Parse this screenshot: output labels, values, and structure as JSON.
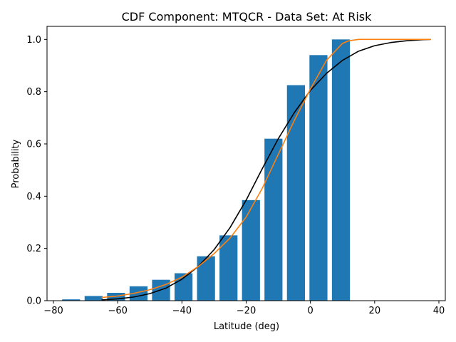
{
  "chart_data": {
    "type": "bar",
    "title": "CDF Component: MTQCR - Data Set: At Risk",
    "xlabel": "Latitude (deg)",
    "ylabel": "Probability",
    "xlim": [
      -82,
      42
    ],
    "ylim": [
      0,
      1.05
    ],
    "x_ticks": [
      -80,
      -60,
      -40,
      -20,
      0,
      20,
      40
    ],
    "y_ticks": [
      0.0,
      0.2,
      0.4,
      0.6,
      0.8,
      1.0
    ],
    "x_tick_labels": [
      "−80",
      "−60",
      "−40",
      "−20",
      "0",
      "20",
      "40"
    ],
    "y_tick_labels": [
      "0.0",
      "0.2",
      "0.4",
      "0.6",
      "0.8",
      "1.0"
    ],
    "grid": false,
    "bar_color": "#1f77b4",
    "bar_width": 5.6,
    "bars": {
      "x": [
        -74.5,
        -67.5,
        -60.5,
        -53.5,
        -46.5,
        -39.5,
        -32.5,
        -25.5,
        -18.5,
        -11.5,
        -4.5,
        2.5,
        9.5
      ],
      "values": [
        0.005,
        0.018,
        0.03,
        0.055,
        0.08,
        0.105,
        0.17,
        0.25,
        0.385,
        0.62,
        0.825,
        0.94,
        1.0
      ]
    },
    "series": [
      {
        "type": "line",
        "color": "#000000",
        "x": [
          -65,
          -60,
          -55,
          -50,
          -45,
          -40,
          -35,
          -30,
          -25,
          -20,
          -15,
          -10,
          -5,
          0,
          5,
          10,
          15,
          20,
          25,
          30,
          35,
          37.5
        ],
        "values": [
          0.003,
          0.007,
          0.014,
          0.027,
          0.048,
          0.082,
          0.13,
          0.195,
          0.28,
          0.385,
          0.505,
          0.62,
          0.72,
          0.805,
          0.87,
          0.92,
          0.955,
          0.976,
          0.988,
          0.995,
          0.999,
          1.0
        ]
      },
      {
        "type": "line",
        "color": "#ff7f0e",
        "x": [
          -65,
          -60,
          -55,
          -50,
          -45,
          -40,
          -35,
          -30,
          -25,
          -20,
          -15,
          -10,
          -5,
          0,
          5,
          10,
          12,
          15,
          20,
          25,
          30,
          37.5
        ],
        "values": [
          0.012,
          0.018,
          0.028,
          0.042,
          0.062,
          0.09,
          0.13,
          0.18,
          0.24,
          0.32,
          0.43,
          0.56,
          0.69,
          0.81,
          0.92,
          0.985,
          0.995,
          1.0,
          1.0,
          1.0,
          1.0,
          1.0
        ]
      }
    ]
  }
}
